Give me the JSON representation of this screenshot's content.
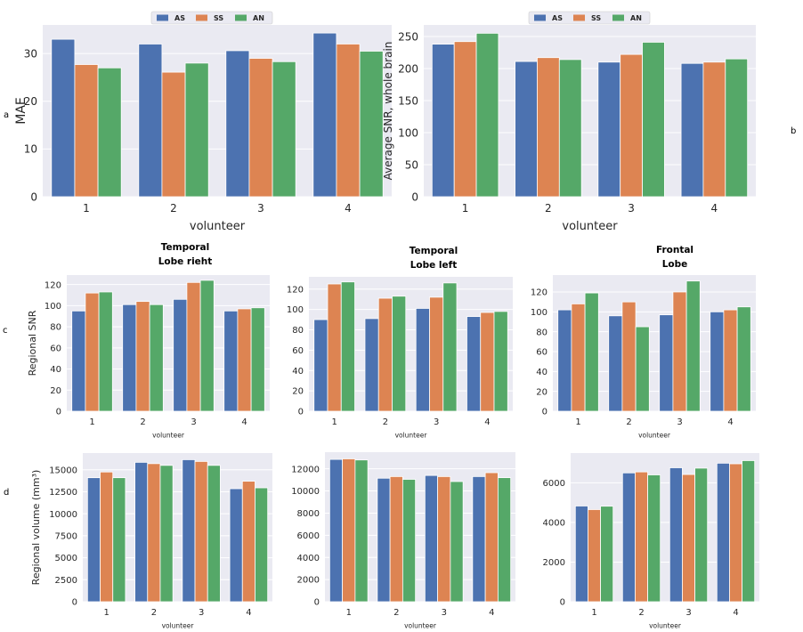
{
  "panel_labels": {
    "a": "a",
    "b": "b",
    "c": "c",
    "d": "d"
  },
  "colors": {
    "AS": "#4c72b0",
    "SS": "#dd8452",
    "AN": "#55a868",
    "background": "#eaeaf2"
  },
  "chart_data": [
    {
      "id": "mae",
      "type": "bar",
      "title": "",
      "categories": [
        "1",
        "2",
        "3",
        "4"
      ],
      "series": [
        {
          "name": "AS",
          "values": [
            33.0,
            32.0,
            30.6,
            34.3
          ]
        },
        {
          "name": "SS",
          "values": [
            27.7,
            26.1,
            29.0,
            32.0
          ]
        },
        {
          "name": "AN",
          "values": [
            27.0,
            28.0,
            28.3,
            30.5
          ]
        }
      ],
      "xlabel": "volunteer",
      "ylabel": "MAE",
      "ylim": [
        0,
        36
      ],
      "yticks": [
        0,
        10,
        20,
        30
      ],
      "legend": "top-center",
      "grid": true
    },
    {
      "id": "snr_whole",
      "type": "bar",
      "title": "",
      "categories": [
        "1",
        "2",
        "3",
        "4"
      ],
      "series": [
        {
          "name": "AS",
          "values": [
            238,
            211,
            210,
            208
          ]
        },
        {
          "name": "SS",
          "values": [
            242,
            217,
            222,
            210
          ]
        },
        {
          "name": "AN",
          "values": [
            255,
            214,
            241,
            215
          ]
        }
      ],
      "xlabel": "volunteer",
      "ylabel": "Average SNR, whole brain",
      "ylim": [
        0,
        268
      ],
      "yticks": [
        0,
        50,
        100,
        150,
        200,
        250
      ],
      "legend": "top-center",
      "grid": true
    },
    {
      "id": "snr_temporal_right",
      "type": "bar",
      "title": "Temporal\nLobe rieht",
      "categories": [
        "1",
        "2",
        "3",
        "4"
      ],
      "series": [
        {
          "name": "AS",
          "values": [
            95,
            101,
            106,
            95
          ]
        },
        {
          "name": "SS",
          "values": [
            112,
            104,
            122,
            97
          ]
        },
        {
          "name": "AN",
          "values": [
            113,
            101,
            124,
            98
          ]
        }
      ],
      "xlabel": "volunteer",
      "ylabel": "Regional SNR",
      "ylim": [
        0,
        129
      ],
      "yticks": [
        0,
        20,
        40,
        60,
        80,
        100,
        120
      ],
      "legend": "none",
      "grid": true
    },
    {
      "id": "snr_temporal_left",
      "type": "bar",
      "title": "Temporal\nLobe left",
      "categories": [
        "1",
        "2",
        "3",
        "4"
      ],
      "series": [
        {
          "name": "AS",
          "values": [
            90,
            91,
            101,
            93
          ]
        },
        {
          "name": "SS",
          "values": [
            125,
            111,
            112,
            97
          ]
        },
        {
          "name": "AN",
          "values": [
            127,
            113,
            126,
            98
          ]
        }
      ],
      "xlabel": "volunteer",
      "ylabel": "",
      "ylim": [
        0,
        132
      ],
      "yticks": [
        0,
        20,
        40,
        60,
        80,
        100,
        120
      ],
      "legend": "none",
      "grid": true
    },
    {
      "id": "snr_frontal",
      "type": "bar",
      "title": "Frontal\nLobe",
      "categories": [
        "1",
        "2",
        "3",
        "4"
      ],
      "series": [
        {
          "name": "AS",
          "values": [
            102,
            96,
            97,
            100
          ]
        },
        {
          "name": "SS",
          "values": [
            108,
            110,
            120,
            102
          ]
        },
        {
          "name": "AN",
          "values": [
            119,
            85,
            131,
            105
          ]
        }
      ],
      "xlabel": "volunteer",
      "ylabel": "",
      "ylim": [
        0,
        137
      ],
      "yticks": [
        0,
        20,
        40,
        60,
        80,
        100,
        120
      ],
      "legend": "none",
      "grid": true
    },
    {
      "id": "vol_temporal_right",
      "type": "bar",
      "title": "",
      "categories": [
        "1",
        "2",
        "3",
        "4"
      ],
      "series": [
        {
          "name": "AS",
          "values": [
            14100,
            15850,
            16150,
            12850
          ]
        },
        {
          "name": "SS",
          "values": [
            14750,
            15700,
            15950,
            13700
          ]
        },
        {
          "name": "AN",
          "values": [
            14100,
            15500,
            15500,
            12950
          ]
        }
      ],
      "xlabel": "volunteer",
      "ylabel": "Regional volume (mm³)",
      "ylim": [
        0,
        16900
      ],
      "yticks": [
        0,
        2500,
        5000,
        7500,
        10000,
        12500,
        15000
      ],
      "legend": "none",
      "grid": true
    },
    {
      "id": "vol_temporal_left",
      "type": "bar",
      "title": "",
      "categories": [
        "1",
        "2",
        "3",
        "4"
      ],
      "series": [
        {
          "name": "AS",
          "values": [
            12850,
            11150,
            11400,
            11300
          ]
        },
        {
          "name": "SS",
          "values": [
            12900,
            11300,
            11300,
            11650
          ]
        },
        {
          "name": "AN",
          "values": [
            12800,
            11050,
            10850,
            11200
          ]
        }
      ],
      "xlabel": "volunteer",
      "ylabel": "",
      "ylim": [
        0,
        13500
      ],
      "yticks": [
        0,
        2000,
        4000,
        6000,
        8000,
        10000,
        12000
      ],
      "legend": "none",
      "grid": true
    },
    {
      "id": "vol_frontal",
      "type": "bar",
      "title": "",
      "categories": [
        "1",
        "2",
        "3",
        "4"
      ],
      "series": [
        {
          "name": "AS",
          "values": [
            4830,
            6500,
            6760,
            6990
          ]
        },
        {
          "name": "SS",
          "values": [
            4650,
            6550,
            6420,
            6960
          ]
        },
        {
          "name": "AN",
          "values": [
            4820,
            6400,
            6740,
            7120
          ]
        }
      ],
      "xlabel": "volunteer",
      "ylabel": "",
      "ylim": [
        0,
        7500
      ],
      "yticks": [
        0,
        2000,
        4000,
        6000
      ],
      "legend": "none",
      "grid": true
    }
  ]
}
